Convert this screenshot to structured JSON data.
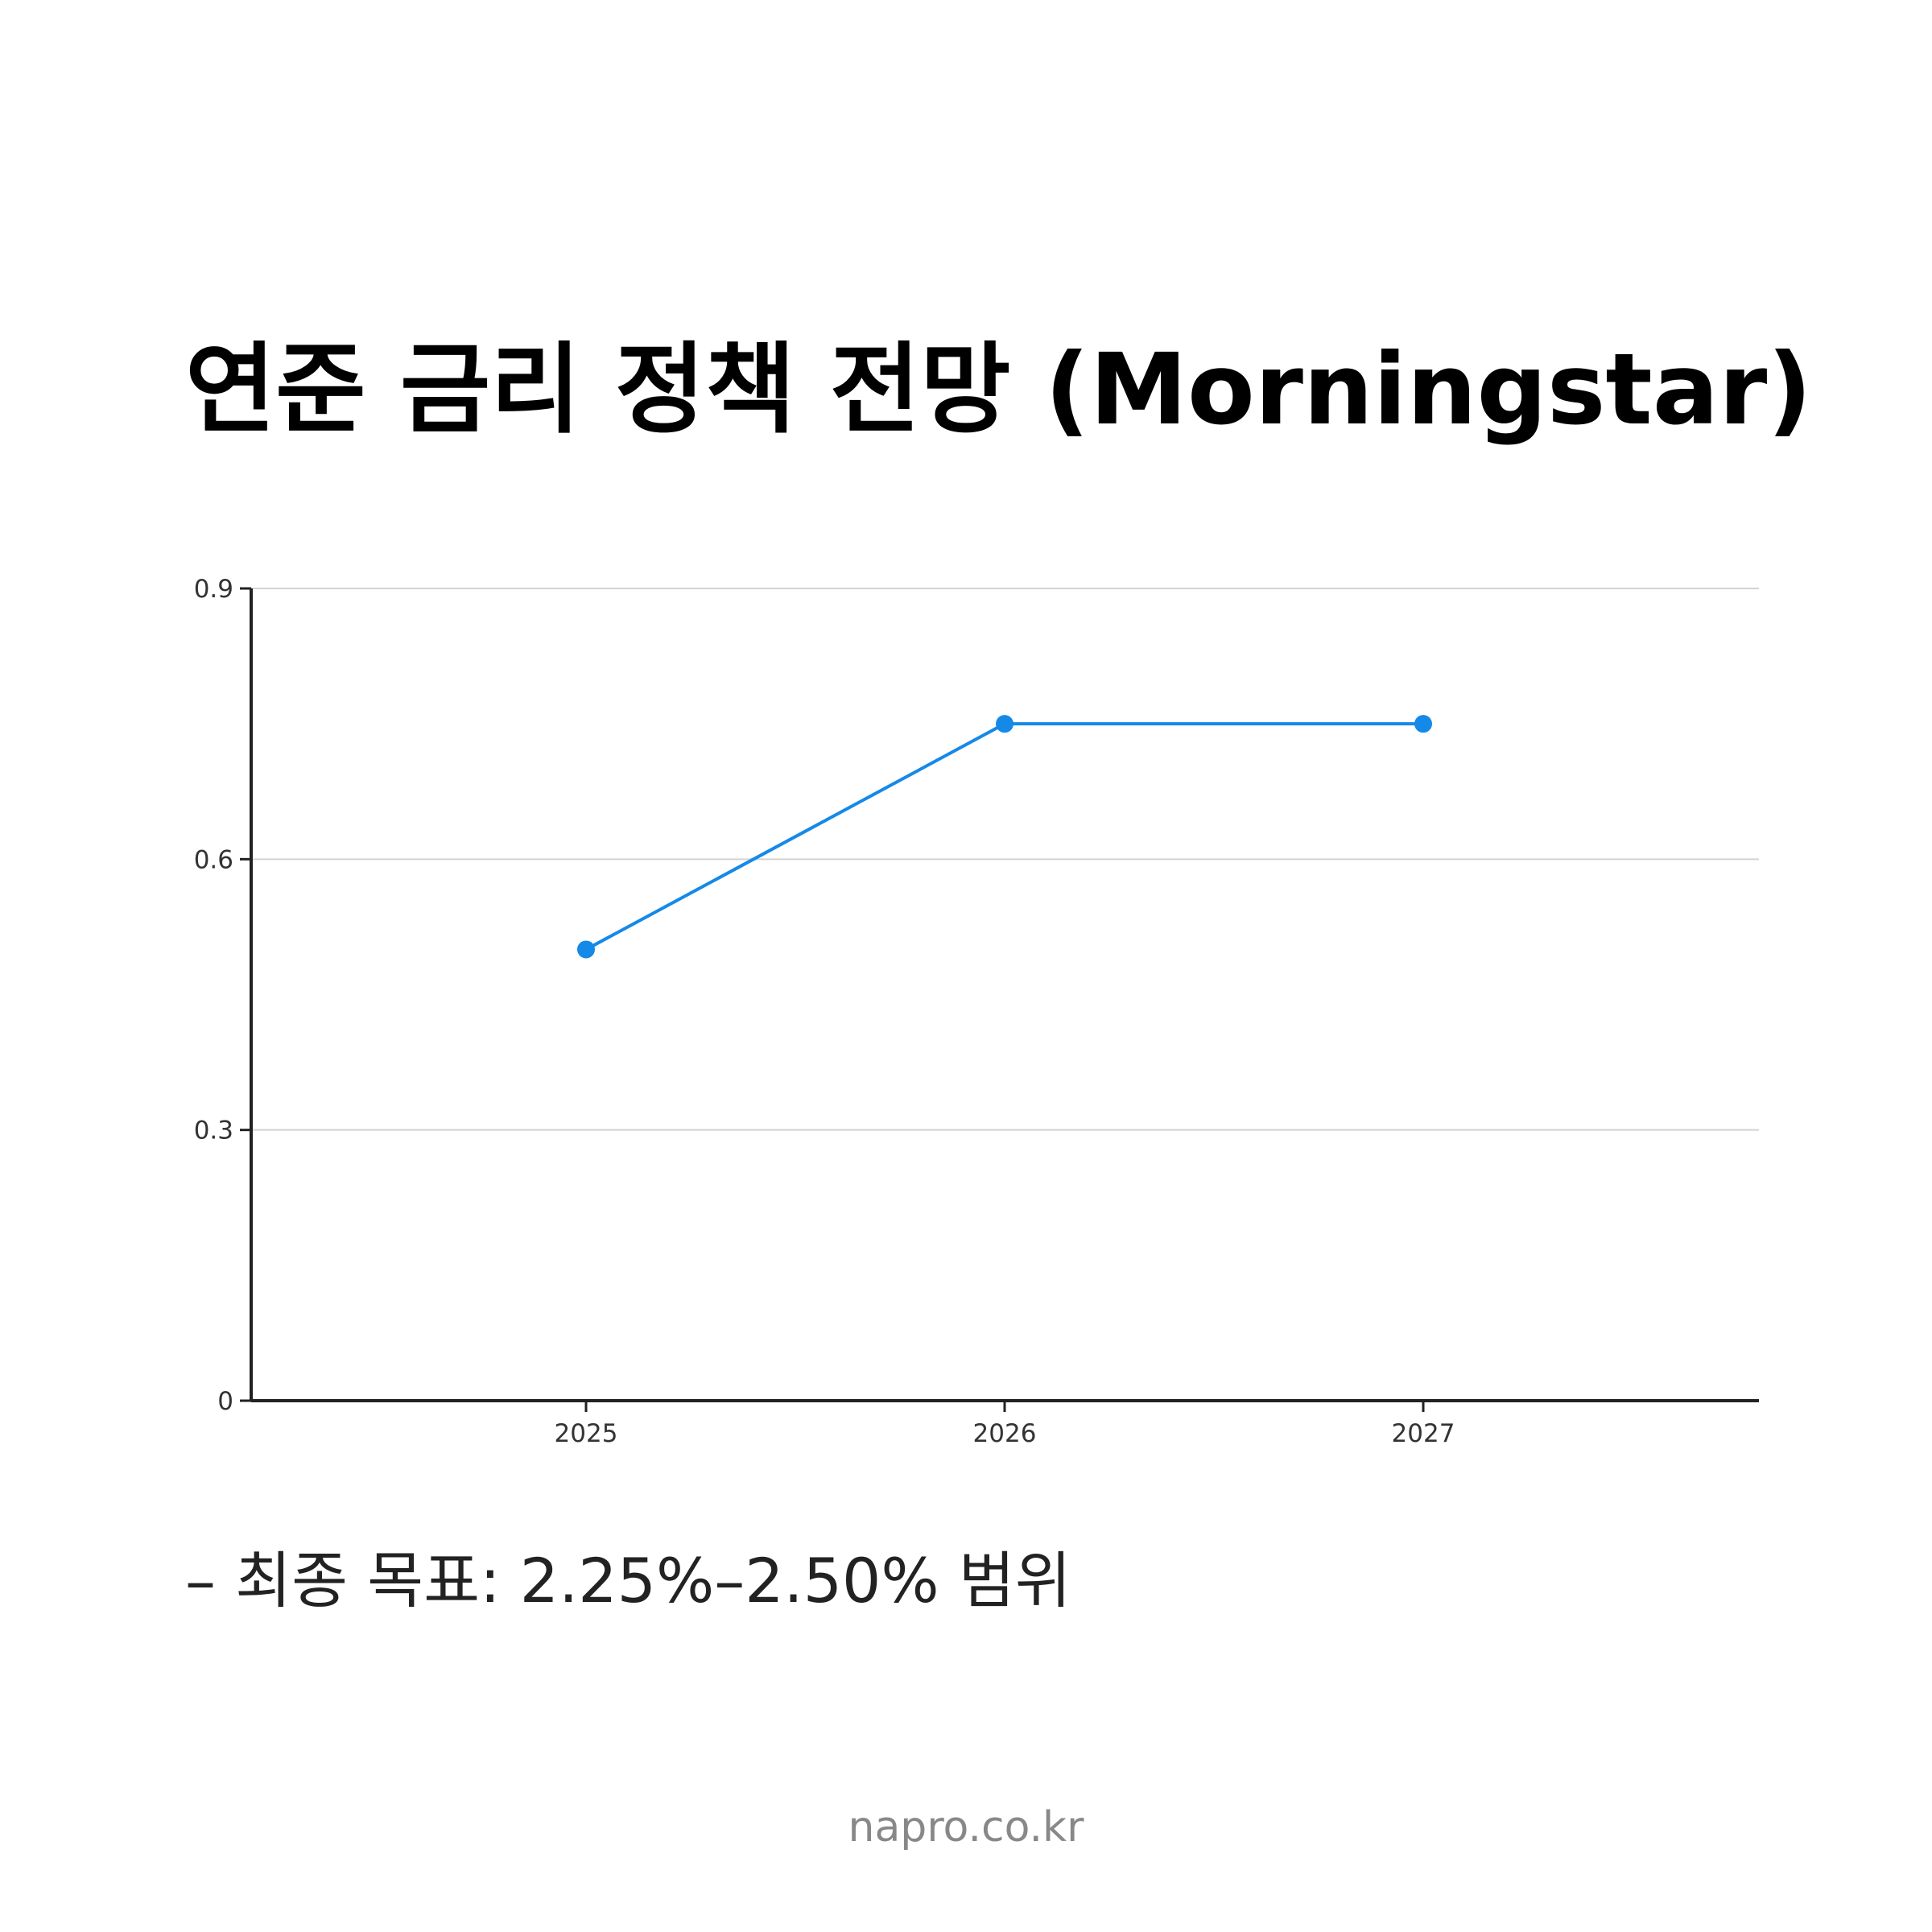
{
  "title": "연준 금리 정책 전망 (Morningstar)",
  "note": "– 최종 목표: 2.25%–2.50% 범위",
  "footer": "napro.co.kr",
  "colors": {
    "line": "#1589E8",
    "grid": "#D3D3D3",
    "axis": "#222222"
  },
  "chart_data": {
    "type": "line",
    "title": "연준 금리 정책 전망 (Morningstar)",
    "xlabel": "",
    "ylabel": "",
    "categories": [
      "2025",
      "2026",
      "2027"
    ],
    "series": [
      {
        "values": [
          0.5,
          0.75,
          0.75
        ]
      }
    ],
    "ylim": [
      0,
      0.9
    ],
    "yticks": [
      "0",
      "0.3",
      "0.6",
      "0.9"
    ],
    "grid": true,
    "legend": "none"
  }
}
